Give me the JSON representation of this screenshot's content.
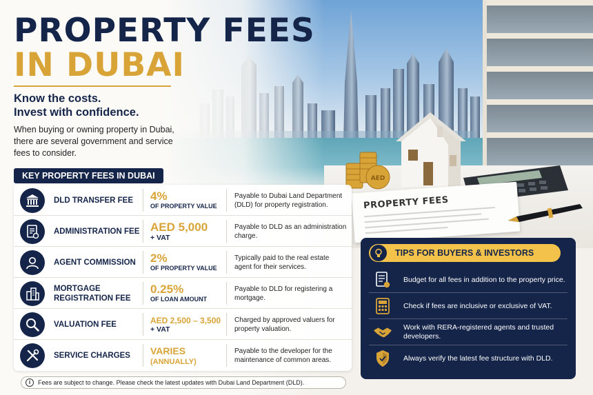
{
  "header": {
    "title_line1": "PROPERTY FEES",
    "title_line2": "IN DUBAI",
    "tagline_line1": "Know the costs.",
    "tagline_line2": "Invest with confidence.",
    "intro": "When buying or owning property in Dubai, there are several government and service fees to consider."
  },
  "scene": {
    "document_title": "PROPERTY FEES",
    "coin_label": "AED"
  },
  "fees": {
    "section_label": "KEY PROPERTY FEES IN DUBAI",
    "rows": [
      {
        "icon": "government-building-icon",
        "name": "DLD TRANSFER FEE",
        "amount": "4%",
        "amount_style": "big",
        "amount_sub": "OF PROPERTY VALUE",
        "description": "Payable to Dubai Land Department (DLD) for property registration."
      },
      {
        "icon": "document-icon",
        "name": "ADMINISTRATION FEE",
        "amount": "AED 5,000",
        "amount_style": "big",
        "amount_sub": "+ VAT",
        "description": "Payable to DLD as an administration charge."
      },
      {
        "icon": "person-icon",
        "name": "AGENT COMMISSION",
        "amount": "2%",
        "amount_style": "big",
        "amount_sub": "OF PROPERTY VALUE",
        "description": "Typically paid to the real estate agent for their services."
      },
      {
        "icon": "buildings-icon",
        "name": "MORTGAGE REGISTRATION FEE",
        "amount": "0.25%",
        "amount_style": "big",
        "amount_sub": "OF LOAN AMOUNT",
        "description": "Payable to DLD for registering a mortgage."
      },
      {
        "icon": "magnifier-icon",
        "name": "VALUATION FEE",
        "amount": "AED 2,500 – 3,500",
        "amount_style": "mid",
        "amount_sub": "+ VAT",
        "description": "Charged by approved valuers for property valuation."
      },
      {
        "icon": "tools-icon",
        "name": "SERVICE CHARGES",
        "amount": "VARIES",
        "amount_style": "big",
        "amount_sub": "(ANNUALLY)",
        "description": "Payable to the developer for the maintenance of common areas."
      }
    ],
    "footer_note": "Fees are subject to change. Please check the latest updates with Dubai Land Department (DLD)."
  },
  "tips": {
    "title": "TIPS FOR BUYERS & INVESTORS",
    "items": [
      {
        "icon": "checklist-icon",
        "text": "Budget for all fees in addition to the property price."
      },
      {
        "icon": "calculator-icon",
        "text": "Check if fees are inclusive or exclusive of VAT."
      },
      {
        "icon": "handshake-icon",
        "text": "Work with RERA-registered agents and trusted developers."
      },
      {
        "icon": "shield-check-icon",
        "text": "Always verify the latest fee structure with DLD."
      }
    ]
  },
  "colors": {
    "navy": "#15254a",
    "gold": "#d9a437",
    "tips_banner": "#f3c24a"
  }
}
